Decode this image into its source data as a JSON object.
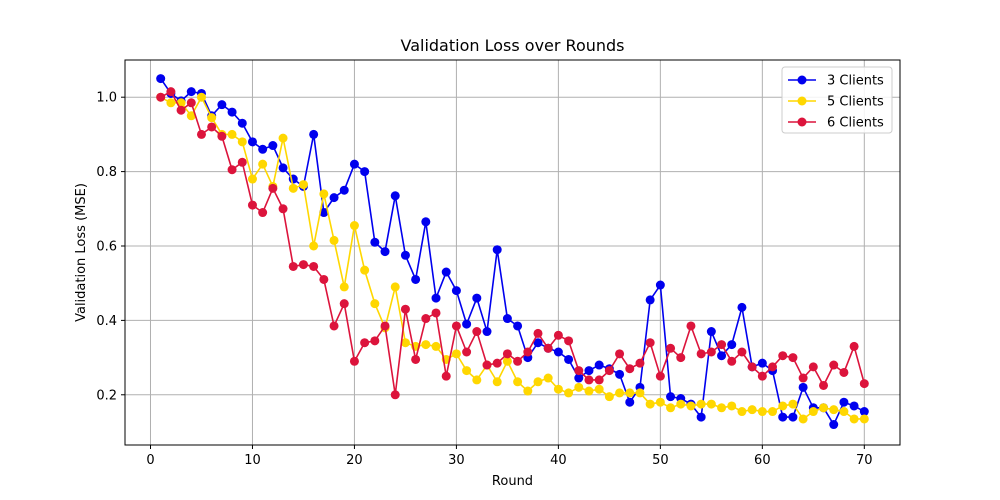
{
  "chart_data": {
    "type": "line",
    "title": "Validation Loss over Rounds",
    "xlabel": "Round",
    "ylabel": "Validation Loss (MSE)",
    "xlim": [
      -2.5,
      73.5
    ],
    "ylim": [
      0.065,
      1.1
    ],
    "xticks": [
      0,
      10,
      20,
      30,
      40,
      50,
      60,
      70
    ],
    "yticks": [
      0.2,
      0.4,
      0.6,
      0.8,
      1.0
    ],
    "xtick_labels": [
      "0",
      "10",
      "20",
      "30",
      "40",
      "50",
      "60",
      "70"
    ],
    "ytick_labels": [
      "0.2",
      "0.4",
      "0.6",
      "0.8",
      "1.0"
    ],
    "grid": true,
    "legend_position": "top-right",
    "x": [
      1,
      2,
      3,
      4,
      5,
      6,
      7,
      8,
      9,
      10,
      11,
      12,
      13,
      14,
      15,
      16,
      17,
      18,
      19,
      20,
      21,
      22,
      23,
      24,
      25,
      26,
      27,
      28,
      29,
      30,
      31,
      32,
      33,
      34,
      35,
      36,
      37,
      38,
      39,
      40,
      41,
      42,
      43,
      44,
      45,
      46,
      47,
      48,
      49,
      50,
      51,
      52,
      53,
      54,
      55,
      56,
      57,
      58,
      59,
      60,
      61,
      62,
      63,
      64,
      65,
      66,
      67,
      68,
      69,
      70
    ],
    "series": [
      {
        "name": "3 Clients",
        "color": "#0000ee",
        "values": [
          1.05,
          1.01,
          0.99,
          1.015,
          1.01,
          0.95,
          0.98,
          0.96,
          0.93,
          0.88,
          0.86,
          0.87,
          0.81,
          0.78,
          0.76,
          0.9,
          0.69,
          0.73,
          0.75,
          0.82,
          0.8,
          0.61,
          0.585,
          0.735,
          0.575,
          0.51,
          0.665,
          0.46,
          0.53,
          0.48,
          0.39,
          0.46,
          0.37,
          0.59,
          0.405,
          0.385,
          0.3,
          0.34,
          0.325,
          0.315,
          0.295,
          0.245,
          0.265,
          0.28,
          0.27,
          0.255,
          0.18,
          0.22,
          0.455,
          0.495,
          0.195,
          0.19,
          0.175,
          0.14,
          0.37,
          0.305,
          0.335,
          0.435,
          0.275,
          0.285,
          0.265,
          0.14,
          0.14,
          0.22,
          0.165,
          0.165,
          0.12,
          0.18,
          0.17,
          0.155
        ]
      },
      {
        "name": "5 Clients",
        "color": "#ffd700",
        "values": [
          1.0,
          0.985,
          0.985,
          0.95,
          1.0,
          0.945,
          0.9,
          0.9,
          0.88,
          0.78,
          0.82,
          0.76,
          0.89,
          0.755,
          0.765,
          0.6,
          0.74,
          0.615,
          0.49,
          0.655,
          0.535,
          0.445,
          0.38,
          0.49,
          0.34,
          0.33,
          0.335,
          0.33,
          0.295,
          0.31,
          0.265,
          0.24,
          0.28,
          0.235,
          0.29,
          0.235,
          0.21,
          0.235,
          0.245,
          0.215,
          0.205,
          0.22,
          0.21,
          0.215,
          0.195,
          0.205,
          0.205,
          0.205,
          0.175,
          0.18,
          0.165,
          0.175,
          0.17,
          0.175,
          0.175,
          0.165,
          0.17,
          0.155,
          0.16,
          0.155,
          0.155,
          0.17,
          0.175,
          0.135,
          0.155,
          0.165,
          0.16,
          0.155,
          0.135,
          0.135
        ]
      },
      {
        "name": "6 Clients",
        "color": "#dc143c",
        "values": [
          1.0,
          1.015,
          0.965,
          0.985,
          0.9,
          0.92,
          0.895,
          0.805,
          0.825,
          0.71,
          0.69,
          0.755,
          0.7,
          0.545,
          0.55,
          0.545,
          0.51,
          0.385,
          0.445,
          0.29,
          0.34,
          0.345,
          0.385,
          0.2,
          0.43,
          0.295,
          0.405,
          0.42,
          0.25,
          0.385,
          0.315,
          0.37,
          0.28,
          0.285,
          0.31,
          0.29,
          0.315,
          0.365,
          0.325,
          0.36,
          0.345,
          0.265,
          0.24,
          0.24,
          0.265,
          0.31,
          0.27,
          0.285,
          0.34,
          0.25,
          0.325,
          0.3,
          0.385,
          0.31,
          0.315,
          0.335,
          0.29,
          0.315,
          0.275,
          0.25,
          0.275,
          0.305,
          0.3,
          0.245,
          0.275,
          0.225,
          0.28,
          0.26,
          0.33,
          0.23
        ]
      }
    ]
  }
}
